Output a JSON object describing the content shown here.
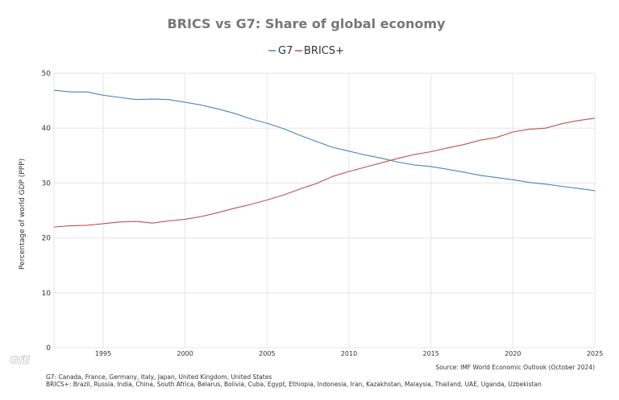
{
  "chart_data": {
    "type": "line",
    "title": "BRICS vs G7: Share of global economy",
    "ylabel": "Percentage of world GDP (PPP)",
    "xlabel": "",
    "xlim": [
      1992,
      2025
    ],
    "ylim": [
      0,
      50
    ],
    "x_ticks": [
      "1995",
      "2000",
      "2005",
      "2010",
      "2015",
      "2020",
      "2025"
    ],
    "y_ticks": [
      "0",
      "10",
      "20",
      "30",
      "40",
      "50"
    ],
    "grid": true,
    "legend_position": "top-center",
    "x": [
      1992,
      1993,
      1994,
      1995,
      1996,
      1997,
      1998,
      1999,
      2000,
      2001,
      2002,
      2003,
      2004,
      2005,
      2006,
      2007,
      2008,
      2009,
      2010,
      2011,
      2012,
      2013,
      2014,
      2015,
      2016,
      2017,
      2018,
      2019,
      2020,
      2021,
      2022,
      2023,
      2024,
      2025
    ],
    "series": [
      {
        "name": "G7",
        "color": "#4f81bd",
        "values": [
          46.9,
          46.6,
          46.6,
          46.0,
          45.6,
          45.2,
          45.3,
          45.2,
          44.7,
          44.2,
          43.5,
          42.7,
          41.7,
          40.9,
          39.9,
          38.7,
          37.6,
          36.5,
          35.8,
          35.1,
          34.5,
          33.8,
          33.3,
          33.0,
          32.5,
          32.0,
          31.4,
          31.0,
          30.6,
          30.1,
          29.8,
          29.4,
          29.0,
          28.6
        ]
      },
      {
        "name": "BRICS+",
        "color": "#c0504d",
        "values": [
          22.0,
          22.2,
          22.3,
          22.6,
          22.9,
          23.0,
          22.7,
          23.1,
          23.4,
          23.9,
          24.6,
          25.4,
          26.1,
          26.9,
          27.8,
          28.9,
          29.9,
          31.2,
          32.1,
          32.9,
          33.7,
          34.5,
          35.2,
          35.7,
          36.4,
          37.0,
          37.8,
          38.3,
          39.3,
          39.8,
          40.0,
          40.8,
          41.4,
          41.8
        ]
      }
    ]
  },
  "source": "Source: IMF World Economic Outlook (October 2024)",
  "footnotes": [
    "G7: Canada, France, Germany, Italy, Japan, United Kingdom, United States",
    "BRICS+: Brazil, Russia, India, China, South Africa, Belarus, Bolivia, Cuba, Egypt, Ethiopia, Indonesia, Iran, Kazakhstan, Malaysia, Thailand, UAE, Uganda, Uzbekistan"
  ],
  "logo_text": "GfE",
  "colors": {
    "grid": "#e6e6e6",
    "title": "#777777"
  }
}
